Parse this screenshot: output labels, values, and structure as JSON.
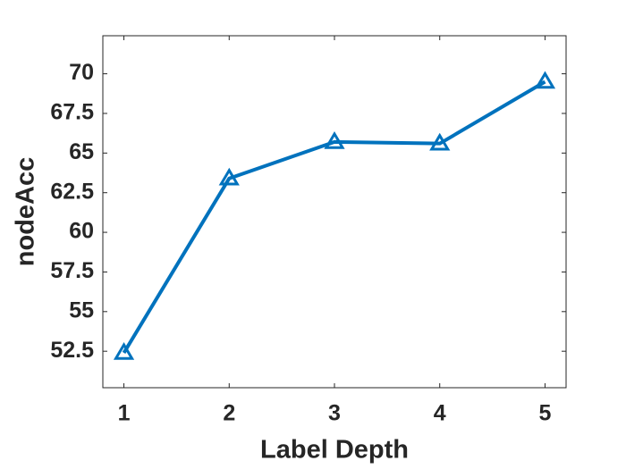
{
  "chart_data": {
    "type": "line",
    "xlabel": "Label Depth",
    "ylabel": "nodeAcc",
    "x": [
      1,
      2,
      3,
      4,
      5
    ],
    "series": [
      {
        "color": "#0072bd",
        "values": [
          52.4,
          63.4,
          65.7,
          65.6,
          69.5
        ]
      }
    ],
    "xlim": [
      0.8,
      5.2
    ],
    "xticks": [
      1,
      2,
      3,
      4,
      5
    ],
    "ylim": [
      50.2,
      72.4
    ],
    "yticks": [
      52.5,
      55,
      57.5,
      60,
      62.5,
      65,
      67.5,
      70
    ],
    "grid": false,
    "marker": "triangle"
  }
}
